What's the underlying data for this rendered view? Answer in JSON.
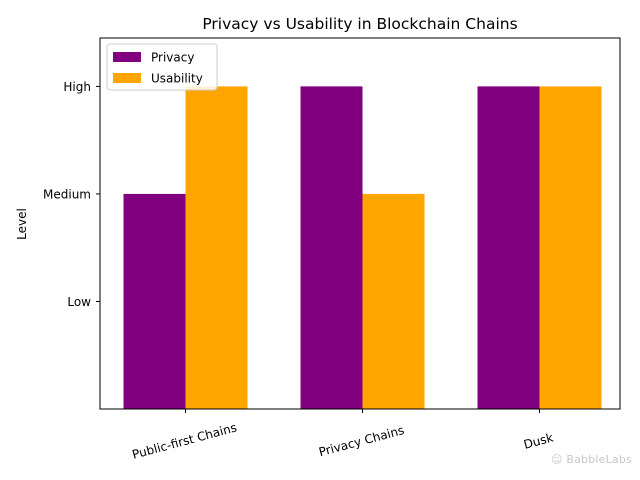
{
  "chart_data": {
    "type": "bar",
    "title": "Privacy vs Usability in Blockchain Chains",
    "xlabel": "",
    "ylabel": "Level",
    "categories": [
      "Public-first Chains",
      "Privacy Chains",
      "Dusk"
    ],
    "series": [
      {
        "name": "Privacy",
        "values": [
          2,
          3,
          3
        ],
        "color": "#800080"
      },
      {
        "name": "Usability",
        "values": [
          3,
          2,
          3
        ],
        "color": "#FFA500"
      }
    ],
    "yticks": [
      {
        "value": 1,
        "label": "Low"
      },
      {
        "value": 2,
        "label": "Medium"
      },
      {
        "value": 3,
        "label": "High"
      }
    ],
    "ylim": [
      0,
      3.45
    ],
    "grid": false,
    "legend_position": "top-left"
  },
  "watermark": "☺ BabbleLabs"
}
